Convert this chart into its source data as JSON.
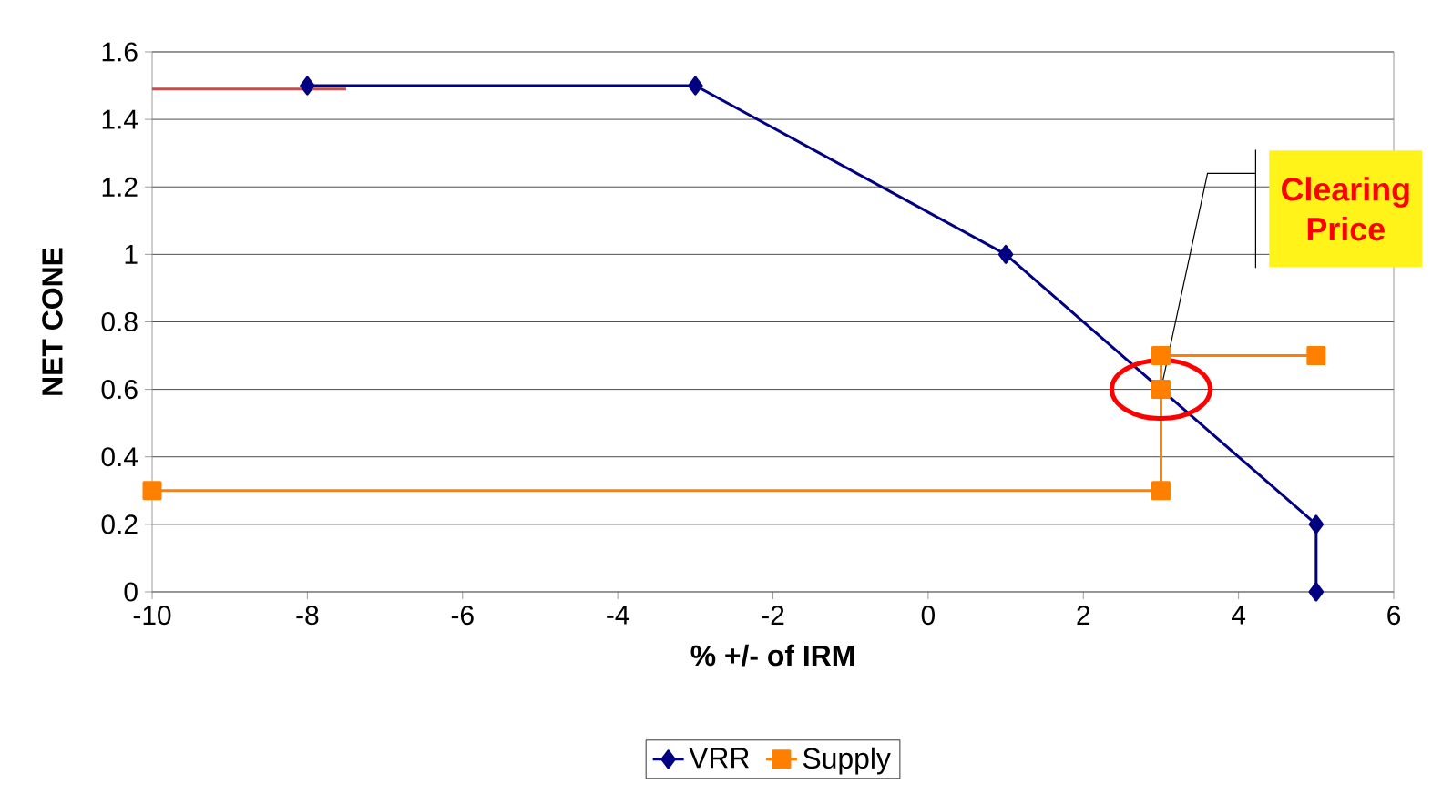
{
  "chart_data": {
    "type": "line",
    "xlabel": "% +/- of IRM",
    "ylabel": "NET CONE",
    "xlim": [
      -10,
      6
    ],
    "xticks": [
      -10,
      -8,
      -6,
      -4,
      -2,
      0,
      2,
      4,
      6
    ],
    "ylim": [
      0,
      1.6
    ],
    "yticks": [
      0,
      0.2,
      0.4,
      0.6,
      0.8,
      1,
      1.2,
      1.4,
      1.6
    ],
    "grid": "y",
    "legend": "bottom",
    "series": [
      {
        "name": "VRR",
        "color": "#000080",
        "marker": "diamond",
        "x": [
          -8,
          -3,
          1,
          5,
          5
        ],
        "values": [
          1.5,
          1.5,
          1.0,
          0.2,
          0
        ]
      },
      {
        "name": "Supply",
        "color": "#ff8000",
        "marker": "square",
        "x": [
          -10,
          3,
          3,
          3,
          5
        ],
        "values": [
          0.3,
          0.3,
          0.6,
          0.7,
          0.7
        ]
      },
      {
        "color": "#c0504d",
        "marker": "none",
        "x": [
          -10,
          -7.5
        ],
        "values": [
          1.49,
          1.49
        ]
      }
    ],
    "annotations": [
      {
        "text": "Clearing Price",
        "x": 3,
        "y": 0.6
      }
    ]
  }
}
